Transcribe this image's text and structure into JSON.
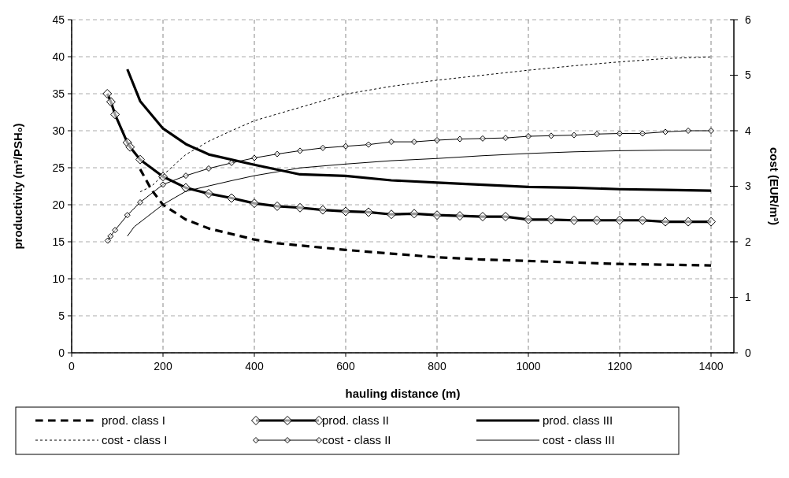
{
  "chart_data": {
    "type": "line",
    "xlabel": "hauling distance (m)",
    "ylabel": "productivity (m³/PSH₀)",
    "y2label": "cost (EUR/m³)",
    "xlim": [
      0,
      1450
    ],
    "xticks": [
      0,
      200,
      400,
      600,
      800,
      1000,
      1200,
      1400
    ],
    "ylim": [
      0,
      45
    ],
    "yticks": [
      0,
      5,
      10,
      15,
      20,
      25,
      30,
      35,
      40,
      45
    ],
    "y2lim": [
      0,
      6
    ],
    "y2ticks": [
      0,
      1,
      2,
      3,
      4,
      5,
      6
    ],
    "grid": true,
    "legend": "bottom",
    "series": [
      {
        "name": "prod. class I",
        "color": "#000000",
        "line_style": "dashed",
        "marker": "none",
        "x": [
          150,
          175,
          200,
          250,
          300,
          400,
          450,
          500,
          600,
          700,
          800,
          900,
          1000,
          1100,
          1200,
          1300,
          1400
        ],
        "values": [
          24.8,
          22,
          20,
          18,
          16.8,
          15.3,
          14.8,
          14.5,
          13.9,
          13.4,
          12.9,
          12.6,
          12.4,
          12.2,
          12.0,
          11.9,
          11.8
        ]
      },
      {
        "name": "prod. class II",
        "color": "#000000",
        "line_style": "solid",
        "marker": "diamond",
        "x": [
          78,
          86,
          95,
          122,
          128,
          150,
          200,
          250,
          300,
          350,
          400,
          450,
          500,
          550,
          600,
          650,
          700,
          750,
          800,
          850,
          900,
          950,
          1000,
          1050,
          1100,
          1150,
          1200,
          1250,
          1300,
          1350,
          1400
        ],
        "values": [
          35,
          33.9,
          32.2,
          28.4,
          27.8,
          26.1,
          23.8,
          22.3,
          21.5,
          20.9,
          20.2,
          19.8,
          19.6,
          19.3,
          19.1,
          19,
          18.7,
          18.8,
          18.6,
          18.5,
          18.4,
          18.4,
          18,
          18,
          17.9,
          17.9,
          17.9,
          17.9,
          17.7,
          17.7,
          17.7
        ]
      },
      {
        "name": "prod. class III",
        "color": "#000000",
        "line_style": "solid",
        "marker": "none",
        "x": [
          122,
          150,
          200,
          250,
          300,
          400,
          500,
          600,
          700,
          800,
          900,
          1000,
          1100,
          1200,
          1300,
          1400
        ],
        "values": [
          38.3,
          34,
          30.3,
          28.2,
          26.8,
          25.4,
          24.1,
          23.9,
          23.3,
          23,
          22.7,
          22.4,
          22.3,
          22.1,
          22,
          21.9
        ]
      },
      {
        "name": "cost - class I",
        "color": "#000000",
        "line_style": "dotted",
        "marker": "none",
        "axis": "y2",
        "x": [
          150,
          175,
          200,
          250,
          300,
          350,
          400,
          500,
          600,
          700,
          800,
          900,
          1000,
          1100,
          1200,
          1300,
          1400
        ],
        "values": [
          2.9,
          3.0,
          3.2,
          3.57,
          3.81,
          4.0,
          4.18,
          4.42,
          4.66,
          4.8,
          4.91,
          5.0,
          5.09,
          5.17,
          5.24,
          5.3,
          5.33
        ]
      },
      {
        "name": "cost - class II",
        "color": "#000000",
        "line_style": "solid",
        "marker": "diamond",
        "axis": "y2",
        "x": [
          79,
          85,
          95,
          122,
          150,
          200,
          250,
          300,
          350,
          400,
          450,
          500,
          550,
          600,
          650,
          700,
          750,
          800,
          850,
          900,
          950,
          1000,
          1050,
          1100,
          1150,
          1200,
          1250,
          1300,
          1350,
          1400
        ],
        "values": [
          2.02,
          2.1,
          2.21,
          2.48,
          2.71,
          3.03,
          3.19,
          3.32,
          3.42,
          3.51,
          3.58,
          3.64,
          3.69,
          3.72,
          3.75,
          3.8,
          3.8,
          3.83,
          3.85,
          3.86,
          3.87,
          3.9,
          3.91,
          3.92,
          3.94,
          3.95,
          3.95,
          3.98,
          4.0,
          4.0
        ]
      },
      {
        "name": "cost - class III",
        "color": "#000000",
        "line_style": "solid",
        "marker": "none",
        "axis": "y2",
        "x": [
          122,
          137,
          200,
          250,
          350,
          400,
          500,
          600,
          700,
          800,
          900,
          1000,
          1100,
          1200,
          1300,
          1400
        ],
        "values": [
          2.1,
          2.27,
          2.67,
          2.91,
          3.1,
          3.19,
          3.33,
          3.4,
          3.46,
          3.5,
          3.55,
          3.59,
          3.62,
          3.64,
          3.65,
          3.65
        ]
      }
    ]
  }
}
